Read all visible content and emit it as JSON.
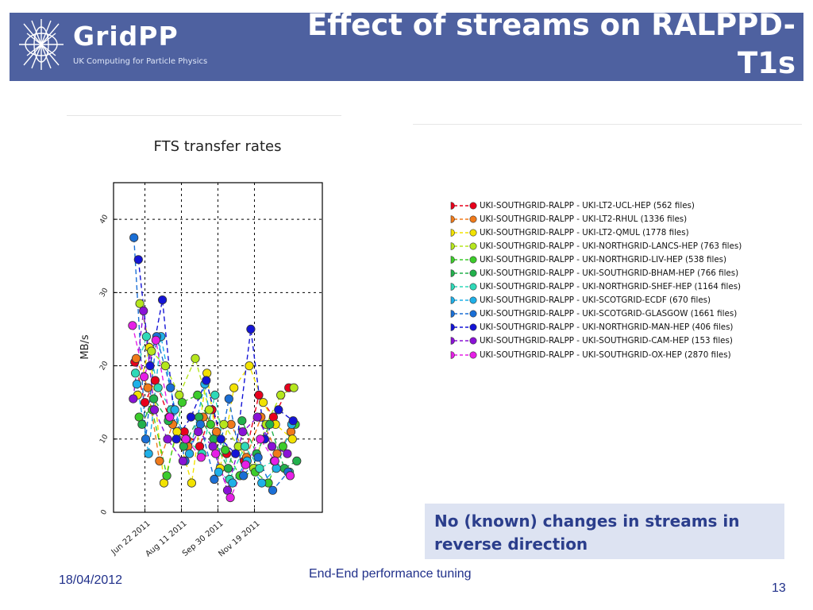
{
  "header": {
    "logo_name": "GridPP",
    "logo_tagline": "UK Computing for Particle Physics",
    "title": "Effect of streams on RALPPD-T1s",
    "bar_color": "#4e61a0"
  },
  "chart_data": {
    "type": "scatter",
    "title": "FTS transfer rates",
    "xlabel": "",
    "ylabel": "MB/s",
    "ylim": [
      0,
      45
    ],
    "yticks": [
      0,
      10,
      20,
      30,
      40
    ],
    "xlim": [
      "2011-05-10",
      "2012-02-20"
    ],
    "xticks": [
      "Jun 22 2011",
      "Aug 11 2011",
      "Sep 30 2011",
      "Nov 19 2011"
    ],
    "xtick_dates": [
      "2011-06-22",
      "2011-08-11",
      "2011-09-30",
      "2011-11-19"
    ],
    "grid": true,
    "line_style": "dashed",
    "series": [
      {
        "name": "UKI-SOUTHGRID-RALPP - UKI-LT2-UCL-HEP (562 files)",
        "color": "#e8001c",
        "x": [
          "2011-06-08",
          "2011-06-22",
          "2011-07-06",
          "2011-07-25",
          "2011-08-15",
          "2011-09-05",
          "2011-09-22",
          "2011-10-12",
          "2011-11-05",
          "2011-11-25",
          "2011-12-15",
          "2012-01-05"
        ],
        "y": [
          20.5,
          15.0,
          18.0,
          13.0,
          11.0,
          9.0,
          14.0,
          8.0,
          7.0,
          16.0,
          13.0,
          17.0
        ]
      },
      {
        "name": "UKI-SOUTHGRID-RALPP - UKI-LT2-RHUL (1336 files)",
        "color": "#f07a1a",
        "x": [
          "2011-06-10",
          "2011-06-26",
          "2011-07-12",
          "2011-07-30",
          "2011-08-20",
          "2011-09-10",
          "2011-09-28",
          "2011-10-18",
          "2011-11-08",
          "2011-11-28",
          "2011-12-20",
          "2012-01-08"
        ],
        "y": [
          21.0,
          17.0,
          7.0,
          12.0,
          9.0,
          13.0,
          11.0,
          12.0,
          7.5,
          13.0,
          8.0,
          11.0
        ]
      },
      {
        "name": "UKI-SOUTHGRID-RALPP - UKI-LT2-QMUL (1778 files)",
        "color": "#f2e200",
        "x": [
          "2011-06-12",
          "2011-06-28",
          "2011-07-18",
          "2011-08-05",
          "2011-08-25",
          "2011-09-15",
          "2011-10-03",
          "2011-10-22",
          "2011-11-12",
          "2011-12-01",
          "2011-12-18",
          "2012-01-10"
        ],
        "y": [
          16.0,
          22.5,
          4.0,
          11.0,
          4.0,
          19.0,
          6.0,
          17.0,
          20.0,
          15.0,
          12.0,
          10.0
        ]
      },
      {
        "name": "UKI-SOUTHGRID-RALPP - UKI-NORTHGRID-LANCS-HEP (763 files)",
        "color": "#b5e61d",
        "x": [
          "2011-06-15",
          "2011-07-01",
          "2011-07-20",
          "2011-08-08",
          "2011-08-30",
          "2011-09-18",
          "2011-10-08",
          "2011-10-28",
          "2011-11-18",
          "2011-12-05",
          "2011-12-25",
          "2012-01-12"
        ],
        "y": [
          28.5,
          22.0,
          20.0,
          16.0,
          21.0,
          14.0,
          12.0,
          9.0,
          6.0,
          12.0,
          16.0,
          17.0
        ]
      },
      {
        "name": "UKI-SOUTHGRID-RALPP - UKI-NORTHGRID-LIV-HEP (538 files)",
        "color": "#3ccc2a",
        "x": [
          "2011-06-14",
          "2011-07-02",
          "2011-07-22",
          "2011-08-12",
          "2011-09-02",
          "2011-09-20",
          "2011-10-10",
          "2011-10-30",
          "2011-11-20",
          "2011-12-08",
          "2011-12-28",
          "2012-01-14"
        ],
        "y": [
          13.0,
          14.0,
          5.0,
          15.0,
          16.0,
          12.0,
          8.5,
          5.0,
          5.5,
          4.0,
          9.0,
          12.0
        ]
      },
      {
        "name": "UKI-SOUTHGRID-RALPP - UKI-SOUTHGRID-BHAM-HEP (766 files)",
        "color": "#22b14c",
        "x": [
          "2011-06-18",
          "2011-07-04",
          "2011-07-24",
          "2011-08-14",
          "2011-09-04",
          "2011-09-24",
          "2011-10-14",
          "2011-11-02",
          "2011-11-22",
          "2011-12-10",
          "2011-12-30",
          "2012-01-16"
        ],
        "y": [
          12.0,
          15.5,
          12.5,
          9.0,
          13.0,
          10.0,
          6.0,
          12.5,
          8.0,
          12.0,
          6.0,
          7.0
        ]
      },
      {
        "name": "UKI-SOUTHGRID-RALPP - UKI-NORTHGRID-SHEF-HEP (1164 files)",
        "color": "#2fd9b8",
        "x": [
          "2011-06-09",
          "2011-06-24",
          "2011-07-10",
          "2011-07-28",
          "2011-08-18",
          "2011-09-08",
          "2011-09-26",
          "2011-10-16",
          "2011-11-06",
          "2011-11-26",
          "2011-12-16",
          "2012-01-06"
        ],
        "y": [
          19.0,
          24.0,
          17.0,
          14.0,
          10.0,
          8.0,
          16.0,
          4.5,
          9.0,
          6.0,
          7.0,
          5.5
        ]
      },
      {
        "name": "UKI-SOUTHGRID-RALPP - UKI-SCOTGRID-ECDF (670 files)",
        "color": "#1fb0e8",
        "x": [
          "2011-06-11",
          "2011-06-27",
          "2011-07-14",
          "2011-08-02",
          "2011-08-22",
          "2011-09-12",
          "2011-10-01",
          "2011-10-20",
          "2011-11-09",
          "2011-11-29",
          "2011-12-19",
          "2012-01-09"
        ],
        "y": [
          17.5,
          8.0,
          24.0,
          14.0,
          8.0,
          17.5,
          5.5,
          4.0,
          7.0,
          4.0,
          6.0,
          12.0
        ]
      },
      {
        "name": "UKI-SOUTHGRID-RALPP - UKI-SCOTGRID-GLASGOW (1661 files)",
        "color": "#1a6fd6",
        "x": [
          "2011-06-07",
          "2011-06-23",
          "2011-07-08",
          "2011-07-27",
          "2011-08-16",
          "2011-09-06",
          "2011-09-25",
          "2011-10-15",
          "2011-11-04",
          "2011-11-24",
          "2011-12-14",
          "2012-01-04"
        ],
        "y": [
          37.5,
          10.0,
          24.0,
          17.0,
          7.0,
          12.0,
          4.5,
          15.5,
          5.0,
          7.5,
          3.0,
          5.5
        ]
      },
      {
        "name": "UKI-SOUTHGRID-RALPP - UKI-NORTHGRID-MAN-HEP (406 files)",
        "color": "#1414d6",
        "x": [
          "2011-06-13",
          "2011-06-29",
          "2011-07-16",
          "2011-08-04",
          "2011-08-24",
          "2011-09-14",
          "2011-10-04",
          "2011-10-24",
          "2011-11-14",
          "2011-12-03",
          "2011-12-22",
          "2012-01-11"
        ],
        "y": [
          34.5,
          20.0,
          29.0,
          10.0,
          13.0,
          18.0,
          10.0,
          8.0,
          25.0,
          10.0,
          14.0,
          12.5
        ]
      },
      {
        "name": "UKI-SOUTHGRID-RALPP - UKI-SOUTHGRID-CAM-HEP (153 files)",
        "color": "#8a12d6",
        "x": [
          "2011-06-06",
          "2011-06-20",
          "2011-07-05",
          "2011-07-23",
          "2011-08-13",
          "2011-09-03",
          "2011-09-23",
          "2011-10-13",
          "2011-11-03",
          "2011-11-23",
          "2011-12-13",
          "2012-01-03"
        ],
        "y": [
          15.5,
          27.5,
          14.0,
          10.0,
          7.0,
          11.0,
          9.0,
          3.0,
          11.0,
          13.0,
          9.0,
          8.0
        ]
      },
      {
        "name": "UKI-SOUTHGRID-RALPP - UKI-SOUTHGRID-OX-HEP (2870 files)",
        "color": "#e61fe6",
        "x": [
          "2011-06-05",
          "2011-06-21",
          "2011-07-07",
          "2011-07-26",
          "2011-08-17",
          "2011-09-07",
          "2011-09-27",
          "2011-10-17",
          "2011-11-07",
          "2011-11-27",
          "2011-12-17",
          "2012-01-07"
        ],
        "y": [
          25.5,
          18.5,
          23.5,
          13.0,
          10.0,
          7.5,
          8.0,
          2.0,
          6.5,
          10.0,
          7.0,
          5.0
        ]
      }
    ]
  },
  "note": {
    "text": "No (known) changes in streams in reverse direction",
    "bg_color": "#dde3f2",
    "text_color": "#2b3e8c"
  },
  "footer": {
    "date": "18/04/2012",
    "center": "End-End performance tuning",
    "page": "13"
  }
}
